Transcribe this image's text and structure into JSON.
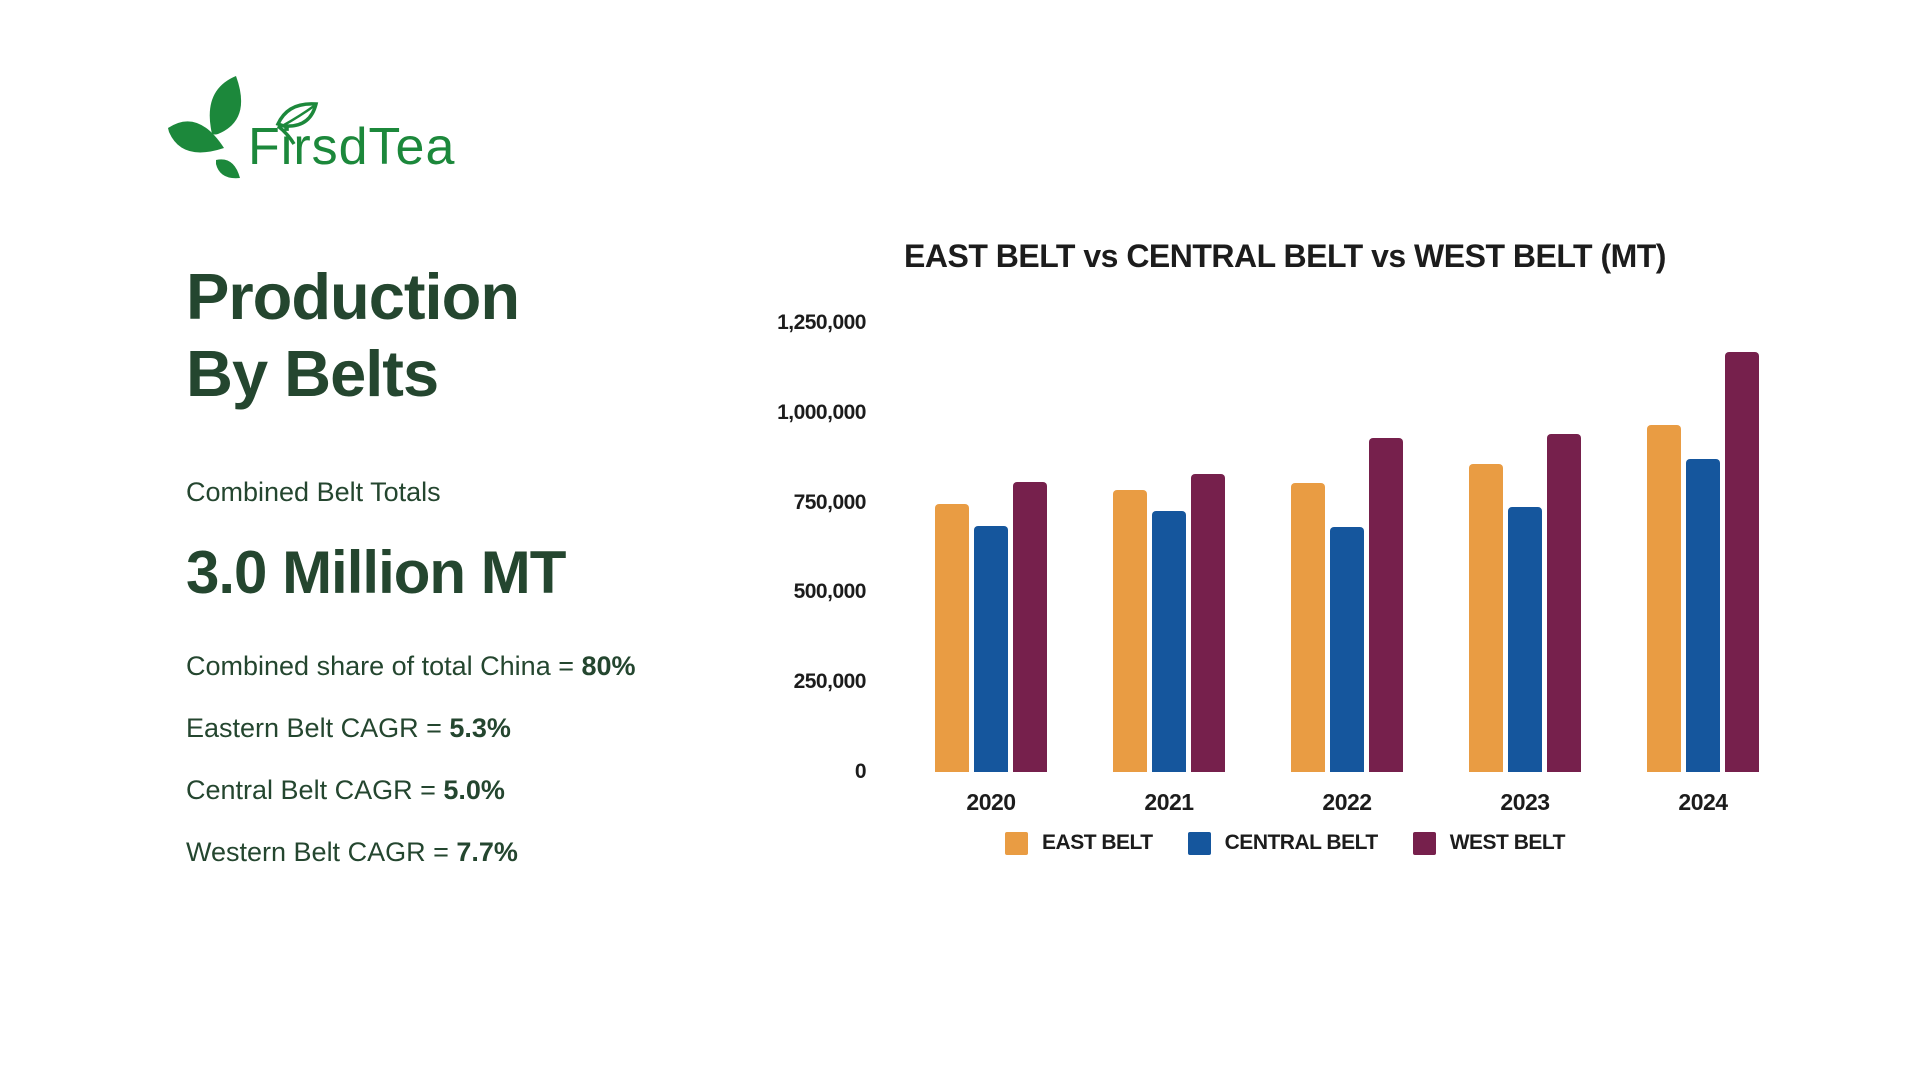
{
  "brand": {
    "name": "FirsdTea",
    "logo_color": "#1C883B"
  },
  "left_panel": {
    "title_line1": "Production",
    "title_line2": "By Belts",
    "subtitle": "Combined Belt Totals",
    "total_value": "3.0 Million MT",
    "stats": [
      {
        "label": "Combined share of total China = ",
        "value": "80%"
      },
      {
        "label": "Eastern Belt CAGR = ",
        "value": "5.3%"
      },
      {
        "label": "Central Belt CAGR = ",
        "value": "5.0%"
      },
      {
        "label": "Western Belt CAGR = ",
        "value": "7.7%"
      }
    ]
  },
  "chart_data": {
    "type": "bar",
    "title": "EAST BELT vs CENTRAL BELT vs WEST BELT (MT)",
    "categories": [
      "2020",
      "2021",
      "2022",
      "2023",
      "2024"
    ],
    "series": [
      {
        "name": "EAST BELT",
        "color": "#E99C43",
        "values": [
          745000,
          786000,
          805000,
          858000,
          965000
        ]
      },
      {
        "name": "CENTRAL BELT",
        "color": "#15569D",
        "values": [
          685000,
          728000,
          682000,
          737000,
          872000
        ]
      },
      {
        "name": "WEST BELT",
        "color": "#76204C",
        "values": [
          807000,
          831000,
          930000,
          941000,
          1170000
        ]
      }
    ],
    "ylim": [
      0,
      1250000
    ],
    "yticks": [
      0,
      250000,
      500000,
      750000,
      1000000,
      1250000
    ],
    "ytick_labels": [
      "0",
      "250,000",
      "500,000",
      "750,000",
      "1,000,000",
      "1,250,000"
    ],
    "xlabel": "",
    "ylabel": "",
    "grid": false,
    "legend_position": "bottom"
  },
  "colors": {
    "background": "#FFFFFF",
    "text_dark_green": "#24462F",
    "chart_text": "#1C1C1C",
    "east_belt": "#E99C43",
    "central_belt": "#15569D",
    "west_belt": "#76204C",
    "logo_green": "#1C883B"
  }
}
